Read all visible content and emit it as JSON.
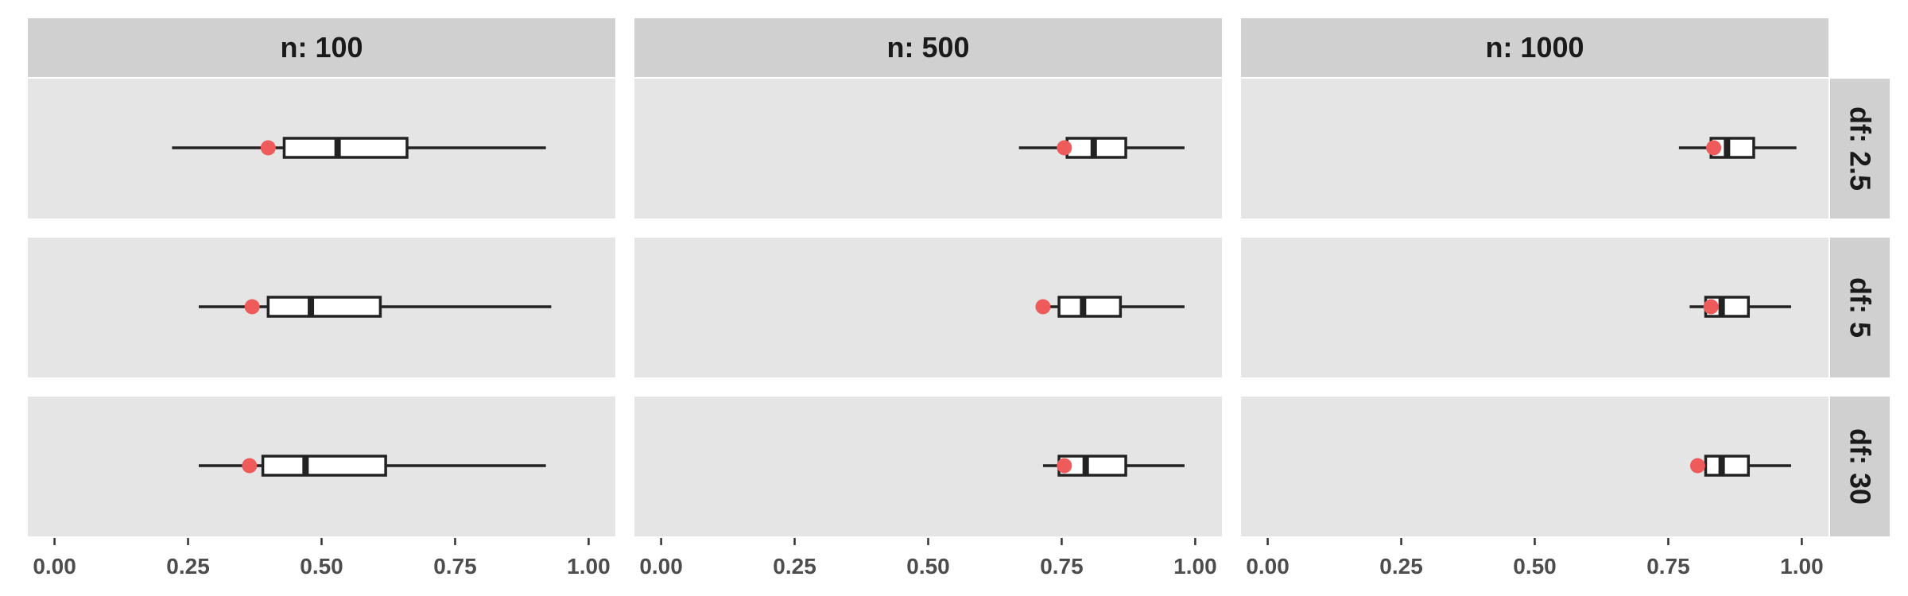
{
  "chart_data": {
    "type": "boxplot",
    "facet_columns": [
      "n: 100",
      "n: 500",
      "n: 1000"
    ],
    "facet_rows": [
      "df: 2.5",
      "df: 5",
      "df: 30"
    ],
    "xlim": [
      -0.05,
      1.05
    ],
    "x_ticks": [
      0,
      0.25,
      0.5,
      0.75,
      1
    ],
    "x_tick_labels": [
      "0.00",
      "0.25",
      "0.50",
      "0.75",
      "1.00"
    ],
    "xlabel": "",
    "ylabel": "",
    "grid": false,
    "colors": {
      "panel_bg": "#e5e5e5",
      "strip_bg": "#d0d0d0",
      "box_fill": "#ffffff",
      "line": "#222222",
      "point": "#ef5b5b"
    },
    "panels": [
      {
        "col": "n: 100",
        "row": "df: 2.5",
        "whisker_low": 0.22,
        "q1": 0.43,
        "median": 0.53,
        "q3": 0.66,
        "whisker_high": 0.92,
        "point": 0.4
      },
      {
        "col": "n: 500",
        "row": "df: 2.5",
        "whisker_low": 0.67,
        "q1": 0.76,
        "median": 0.81,
        "q3": 0.87,
        "whisker_high": 0.98,
        "point": 0.755
      },
      {
        "col": "n: 1000",
        "row": "df: 2.5",
        "whisker_low": 0.77,
        "q1": 0.83,
        "median": 0.86,
        "q3": 0.91,
        "whisker_high": 0.99,
        "point": 0.835
      },
      {
        "col": "n: 100",
        "row": "df: 5",
        "whisker_low": 0.27,
        "q1": 0.4,
        "median": 0.48,
        "q3": 0.61,
        "whisker_high": 0.93,
        "point": 0.37
      },
      {
        "col": "n: 500",
        "row": "df: 5",
        "whisker_low": 0.725,
        "q1": 0.745,
        "median": 0.79,
        "q3": 0.86,
        "whisker_high": 0.98,
        "point": 0.715
      },
      {
        "col": "n: 1000",
        "row": "df: 5",
        "whisker_low": 0.79,
        "q1": 0.82,
        "median": 0.85,
        "q3": 0.9,
        "whisker_high": 0.98,
        "point": 0.83
      },
      {
        "col": "n: 100",
        "row": "df: 30",
        "whisker_low": 0.27,
        "q1": 0.39,
        "median": 0.47,
        "q3": 0.62,
        "whisker_high": 0.92,
        "point": 0.365
      },
      {
        "col": "n: 500",
        "row": "df: 30",
        "whisker_low": 0.715,
        "q1": 0.745,
        "median": 0.795,
        "q3": 0.87,
        "whisker_high": 0.98,
        "point": 0.755
      },
      {
        "col": "n: 1000",
        "row": "df: 30",
        "whisker_low": 0.82,
        "q1": 0.82,
        "median": 0.85,
        "q3": 0.9,
        "whisker_high": 0.98,
        "point": 0.805
      }
    ]
  }
}
